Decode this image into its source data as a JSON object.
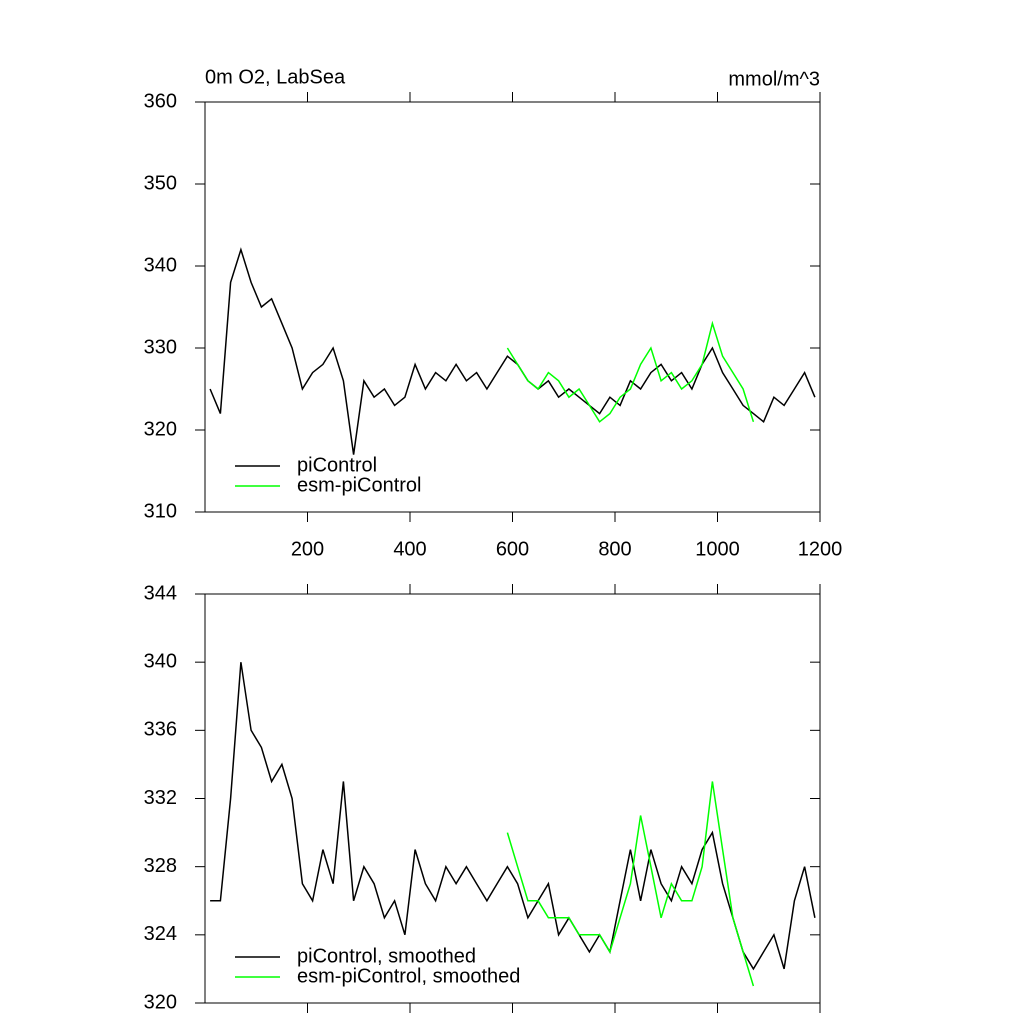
{
  "chart_data": [
    {
      "type": "line",
      "title": "0m O2, LabSea",
      "units": "mmol/m^3",
      "x": [
        10,
        30,
        50,
        70,
        90,
        110,
        130,
        150,
        170,
        190,
        210,
        230,
        250,
        270,
        290,
        310,
        330,
        350,
        370,
        390,
        410,
        430,
        450,
        470,
        490,
        510,
        530,
        550,
        570,
        590,
        610,
        630,
        650,
        670,
        690,
        710,
        730,
        750,
        770,
        790,
        810,
        830,
        850,
        870,
        890,
        910,
        930,
        950,
        970,
        990,
        1010,
        1030,
        1050,
        1070,
        1090,
        1110,
        1130,
        1150,
        1170,
        1190
      ],
      "series": [
        {
          "name": "piControl",
          "color": "#000000",
          "values": [
            325,
            322,
            338,
            342,
            338,
            335,
            336,
            333,
            330,
            325,
            327,
            328,
            330,
            326,
            317,
            326,
            324,
            325,
            323,
            324,
            328,
            325,
            327,
            326,
            328,
            326,
            327,
            325,
            327,
            329,
            328,
            326,
            325,
            326,
            324,
            325,
            324,
            323,
            322,
            324,
            323,
            326,
            325,
            327,
            328,
            326,
            327,
            325,
            328,
            330,
            327,
            325,
            323,
            322,
            321,
            324,
            323,
            325,
            327,
            324
          ]
        },
        {
          "name": "esm-piControl",
          "color": "#00ff00",
          "values": [
            null,
            null,
            null,
            null,
            null,
            null,
            null,
            null,
            null,
            null,
            null,
            null,
            null,
            null,
            null,
            null,
            null,
            null,
            null,
            null,
            null,
            null,
            null,
            null,
            null,
            null,
            null,
            null,
            null,
            330,
            328,
            326,
            325,
            327,
            326,
            324,
            325,
            323,
            321,
            322,
            324,
            325,
            328,
            330,
            326,
            327,
            325,
            326,
            328,
            333,
            329,
            327,
            325,
            321,
            null,
            null,
            null,
            null,
            null,
            null
          ]
        }
      ],
      "xlim": [
        0,
        1200
      ],
      "xticks": [
        200,
        400,
        600,
        800,
        1000,
        1200
      ],
      "xtick_labels": true,
      "ylim": [
        310,
        360
      ],
      "yticks": [
        310,
        320,
        330,
        340,
        350,
        360
      ],
      "legend": "lower left"
    },
    {
      "type": "line",
      "x": [
        10,
        30,
        50,
        70,
        90,
        110,
        130,
        150,
        170,
        190,
        210,
        230,
        250,
        270,
        290,
        310,
        330,
        350,
        370,
        390,
        410,
        430,
        450,
        470,
        490,
        510,
        530,
        550,
        570,
        590,
        610,
        630,
        650,
        670,
        690,
        710,
        730,
        750,
        770,
        790,
        810,
        830,
        850,
        870,
        890,
        910,
        930,
        950,
        970,
        990,
        1010,
        1030,
        1050,
        1070,
        1090,
        1110,
        1130,
        1150,
        1170,
        1190
      ],
      "series": [
        {
          "name": "piControl, smoothed",
          "color": "#000000",
          "values": [
            326,
            326,
            332,
            340,
            336,
            335,
            333,
            334,
            332,
            327,
            326,
            329,
            327,
            333,
            326,
            328,
            327,
            325,
            326,
            324,
            329,
            327,
            326,
            328,
            327,
            328,
            327,
            326,
            327,
            328,
            327,
            325,
            326,
            327,
            324,
            325,
            324,
            323,
            324,
            323,
            326,
            329,
            326,
            329,
            327,
            326,
            328,
            327,
            329,
            330,
            327,
            325,
            323,
            322,
            323,
            324,
            322,
            326,
            328,
            325
          ]
        },
        {
          "name": "esm-piControl, smoothed",
          "color": "#00ff00",
          "values": [
            null,
            null,
            null,
            null,
            null,
            null,
            null,
            null,
            null,
            null,
            null,
            null,
            null,
            null,
            null,
            null,
            null,
            null,
            null,
            null,
            null,
            null,
            null,
            null,
            null,
            null,
            null,
            null,
            null,
            330,
            328,
            326,
            326,
            325,
            325,
            325,
            324,
            324,
            324,
            323,
            325,
            327,
            331,
            328,
            325,
            327,
            326,
            326,
            328,
            333,
            329,
            325,
            323,
            321,
            null,
            null,
            null,
            null,
            null,
            null
          ]
        }
      ],
      "xlim": [
        0,
        1200
      ],
      "xticks": [
        200,
        400,
        600,
        800,
        1000,
        1200
      ],
      "xtick_labels": false,
      "ylim": [
        320,
        344
      ],
      "yticks": [
        320,
        324,
        328,
        332,
        336,
        340,
        344
      ],
      "legend": "lower left"
    }
  ]
}
